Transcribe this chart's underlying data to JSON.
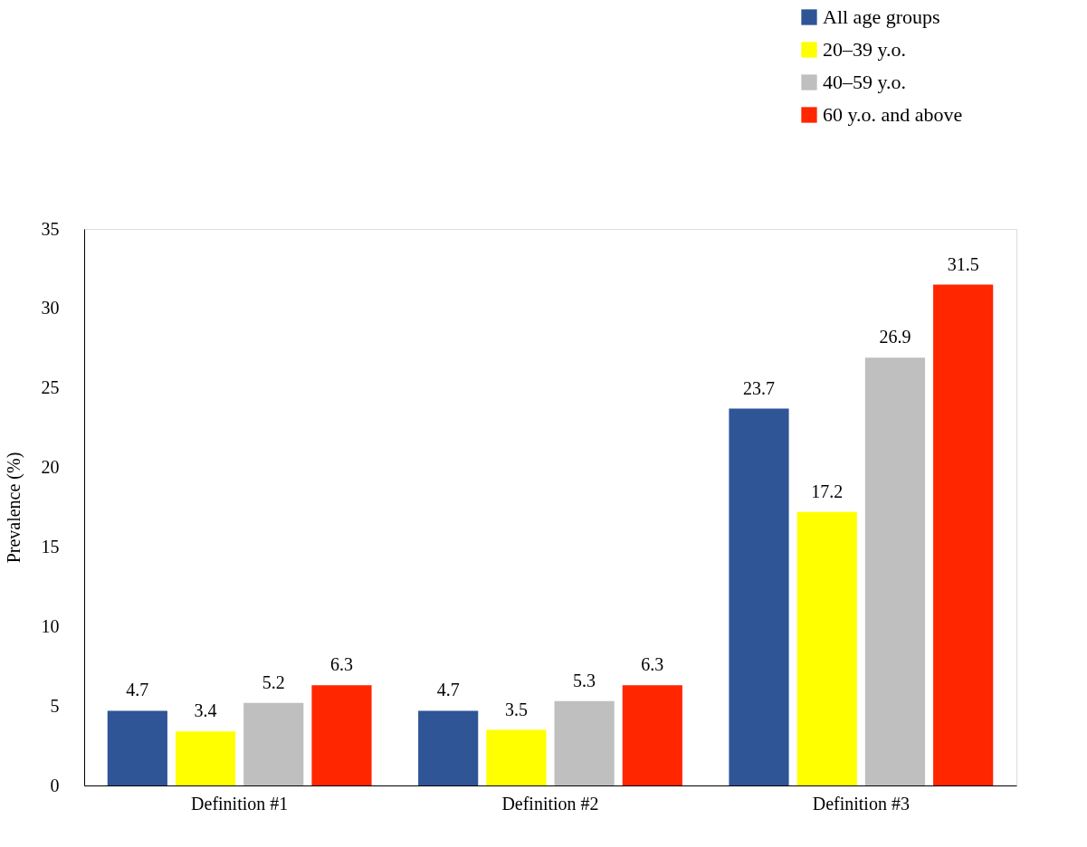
{
  "chart_data": {
    "type": "bar",
    "ylabel": "Prevalence (%)",
    "categories": [
      "Definition #1",
      "Definition #2",
      "Definition #3"
    ],
    "series": [
      {
        "name": "All age groups",
        "color": "#2f5597",
        "values": [
          4.7,
          4.7,
          23.7
        ]
      },
      {
        "name": "20–39 y.o.",
        "color": "#ffff00",
        "values": [
          3.4,
          3.5,
          17.2
        ]
      },
      {
        "name": "40–59 y.o.",
        "color": "#bfbfbf",
        "values": [
          5.2,
          5.3,
          26.9
        ]
      },
      {
        "name": "60 y.o. and above",
        "color": "#ff2600",
        "values": [
          6.3,
          6.3,
          31.5
        ]
      }
    ],
    "ylim": [
      0,
      35
    ],
    "yticks": [
      0,
      5,
      10,
      15,
      20,
      25,
      30,
      35
    ],
    "grid": false,
    "legend": "top right",
    "data_labels": true
  }
}
